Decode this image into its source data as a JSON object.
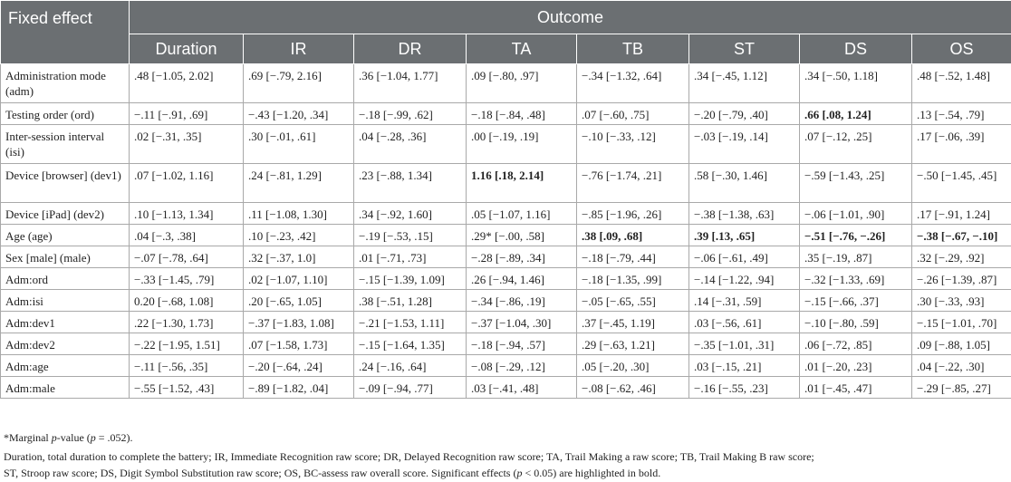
{
  "table": {
    "header": {
      "fixed_effect": "Fixed effect",
      "outcome": "Outcome",
      "columns": [
        "Duration",
        "IR",
        "DR",
        "TA",
        "TB",
        "ST",
        "DS",
        "OS"
      ]
    },
    "rows": [
      {
        "label": "Administration mode (adm)",
        "cells": [
          ".48 [−1.05, 2.02]",
          ".69 [−.79, 2.16]",
          ".36 [−1.04, 1.77]",
          ".09 [−.80, .97]",
          "−.34 [−1.32, .64]",
          ".34 [−.45, 1.12]",
          ".34 [−.50, 1.18]",
          ".48 [−.52, 1.48]"
        ],
        "bold": []
      },
      {
        "label": "Testing order (ord)",
        "cells": [
          "−.11 [−.91, .69]",
          "−.43 [−1.20, .34]",
          "−.18 [−.99, .62]",
          "−.18 [−.84, .48]",
          ".07 [−.60, .75]",
          "−.20 [−.79, .40]",
          ".66 [.08, 1.24]",
          ".13 [−.54, .79]"
        ],
        "bold": [
          6
        ]
      },
      {
        "label": "Inter-session interval (isi)",
        "cells": [
          ".02 [−.31, .35]",
          ".30 [−.01, .61]",
          ".04 [−.28, .36]",
          ".00 [−.19, .19]",
          "−.10 [−.33, .12]",
          "−.03 [−.19, .14]",
          ".07 [−.12, .25]",
          ".17 [−.06, .39]"
        ],
        "bold": []
      },
      {
        "label": "Device [browser] (dev1)",
        "cells": [
          ".07 [−1.02, 1.16]",
          ".24 [−.81, 1.29]",
          ".23 [−.88, 1.34]",
          "1.16 [.18, 2.14]",
          "−.76 [−1.74, .21]",
          ".58 [−.30, 1.46]",
          "−.59 [−1.43, .25]",
          "−.50 [−1.45, .45]"
        ],
        "bold": [
          3
        ]
      },
      {
        "label": "Device [iPad] (dev2)",
        "cells": [
          ".10 [−1.13, 1.34]",
          ".11 [−1.08, 1.30]",
          ".34 [−.92, 1.60]",
          ".05 [−1.07, 1.16]",
          "−.85 [−1.96, .26]",
          "−.38 [−1.38, .63]",
          "−.06 [−1.01, .90]",
          ".17 [−.91, 1.24]"
        ],
        "bold": []
      },
      {
        "label": "Age (age)",
        "cells": [
          ".04 [−.3, .38]",
          ".10 [−.23, .42]",
          "−.19 [−.53, .15]",
          ".29* [−.00, .58]",
          ".38 [.09, .68]",
          ".39 [.13, .65]",
          "−.51 [−.76, −.26]",
          "−.38 [−.67, −.10]"
        ],
        "bold": [
          4,
          5,
          6,
          7
        ]
      },
      {
        "label": "Sex [male] (male)",
        "cells": [
          "−.07 [−.78, .64]",
          ".32 [−.37, 1.0]",
          ".01 [−.71, .73]",
          "−.28 [−.89, .34]",
          "−.18 [−.79, .44]",
          "−.06 [−.61, .49]",
          ".35 [−.19, .87]",
          ".32 [−.29, .92]"
        ],
        "bold": []
      },
      {
        "label": "Adm:ord",
        "cells": [
          "−.33 [−1.45, .79]",
          ".02 [−1.07, 1.10]",
          "−.15 [−1.39, 1.09]",
          ".26 [−.94, 1.46]",
          "−.18 [−1.35, .99]",
          "−.14 [−1.22, .94]",
          "−.32 [−1.33, .69]",
          "−.26 [−1.39, .87]"
        ],
        "bold": []
      },
      {
        "label": "Adm:isi",
        "cells": [
          "0.20 [−.68, 1.08]",
          ".20 [−.65, 1.05]",
          ".38 [−.51, 1.28]",
          "−.34 [−.86, .19]",
          "−.05 [−.65, .55]",
          ".14 [−.31, .59]",
          "−.15 [−.66, .37]",
          ".30 [−.33, .93]"
        ],
        "bold": []
      },
      {
        "label": "Adm:dev1",
        "cells": [
          ".22 [−1.30, 1.73]",
          "−.37 [−1.83, 1.08]",
          "−.21 [−1.53, 1.11]",
          "−.37 [−1.04, .30]",
          ".37 [−.45, 1.19]",
          ".03 [−.56, .61]",
          "−.10 [−.80, .59]",
          "−.15 [−1.01, .70]"
        ],
        "bold": []
      },
      {
        "label": "Adm:dev2",
        "cells": [
          "−.22 [−1.95, 1.51]",
          ".07 [−1.58, 1.73]",
          "−.15 [−1.64, 1.35]",
          "−.18 [−.94, .57]",
          ".29 [−.63, 1.21]",
          "−.35 [−1.01, .31]",
          ".06 [−.72, .85]",
          ".09 [−.88, 1.05]"
        ],
        "bold": []
      },
      {
        "label": "Adm:age",
        "cells": [
          "−.11 [−.56, .35]",
          "−.20 [−.64, .24]",
          ".24 [−.16, .64]",
          "−.08 [−.29, .12]",
          ".05 [−.20, .30]",
          ".03 [−.15, .21]",
          ".01 [−.20, .23]",
          ".04 [−.22, .30]"
        ],
        "bold": []
      },
      {
        "label": "Adm:male",
        "cells": [
          "−.55 [−1.52, .43]",
          "−.89 [−1.82, .04]",
          "−.09 [−.94, .77]",
          ".03 [−.41, .48]",
          "−.08 [−.62, .46]",
          "−.16 [−.55, .23]",
          ".01 [−.45, .47]",
          "−.29 [−.85, .27]"
        ],
        "bold": []
      }
    ]
  },
  "footnotes": {
    "note1_prefix": "*Marginal ",
    "note1_p": "p",
    "note1_mid": "-value (",
    "note1_p2": "p",
    "note1_suffix": " = .052).",
    "note2_line1": "Duration, total duration to complete the battery; IR, Immediate Recognition raw score; DR, Delayed Recognition raw score; TA, Trail Making a raw score; TB, Trail Making B raw score;",
    "note2_line2_a": "ST, Stroop raw score; DS, Digit Symbol Substitution raw score; OS, BC-assess raw overall score. Significant effects (",
    "note2_line2_p": "p",
    "note2_line2_b": " < 0.05) are highlighted in bold."
  }
}
